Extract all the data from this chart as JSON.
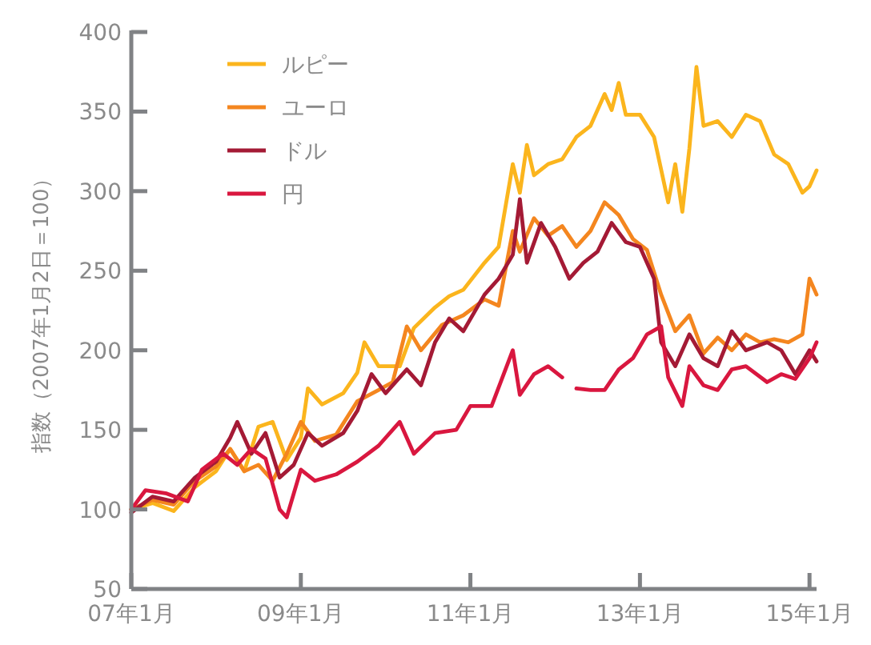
{
  "chart_data": {
    "type": "line",
    "ylabel": "指数（2007年1月2日＝100）",
    "xlim": [
      "2007-01",
      "2015-02"
    ],
    "ylim": [
      50,
      400
    ],
    "yticks": [
      50,
      100,
      150,
      200,
      250,
      300,
      350,
      400
    ],
    "xticks": [
      {
        "value": "2007-01",
        "label": "07年1月"
      },
      {
        "value": "2009-01",
        "label": "09年1月"
      },
      {
        "value": "2011-01",
        "label": "11年1月"
      },
      {
        "value": "2013-01",
        "label": "13年1月"
      },
      {
        "value": "2015-01",
        "label": "15年1月"
      }
    ],
    "grid": false,
    "legend": "top left",
    "marker": "none",
    "line_style": "solid",
    "series": [
      {
        "name": "ルピー",
        "color": "#fbb51d",
        "x": [
          "2007-01",
          "2007-04",
          "2007-07",
          "2007-10",
          "2008-01",
          "2008-03",
          "2008-05",
          "2008-07",
          "2008-09",
          "2008-11",
          "2009-01",
          "2009-02",
          "2009-04",
          "2009-07",
          "2009-09",
          "2009-10",
          "2009-12",
          "2010-03",
          "2010-05",
          "2010-08",
          "2010-10",
          "2010-12",
          "2011-03",
          "2011-05",
          "2011-07",
          "2011-08",
          "2011-09",
          "2011-10",
          "2011-12",
          "2012-02",
          "2012-04",
          "2012-06",
          "2012-08",
          "2012-09",
          "2012-10",
          "2012-11",
          "2013-01",
          "2013-03",
          "2013-05",
          "2013-06",
          "2013-07",
          "2013-08",
          "2013-09",
          "2013-10",
          "2013-12",
          "2014-02",
          "2014-04",
          "2014-06",
          "2014-08",
          "2014-10",
          "2014-12",
          "2015-01",
          "2015-02"
        ],
        "values": [
          100,
          104,
          99,
          114,
          124,
          138,
          124,
          152,
          155,
          131,
          145,
          176,
          166,
          173,
          186,
          205,
          190,
          190,
          214,
          227,
          234,
          238,
          255,
          265,
          317,
          299,
          329,
          310,
          317,
          320,
          334,
          341,
          361,
          351,
          368,
          348,
          348,
          334,
          293,
          317,
          287,
          327,
          378,
          341,
          344,
          334,
          348,
          344,
          323,
          317,
          299,
          303,
          313
        ]
      },
      {
        "name": "ユーロ",
        "color": "#f4861f",
        "x": [
          "2007-01",
          "2007-04",
          "2007-07",
          "2007-10",
          "2008-01",
          "2008-03",
          "2008-05",
          "2008-07",
          "2008-09",
          "2008-11",
          "2009-01",
          "2009-03",
          "2009-06",
          "2009-09",
          "2009-12",
          "2010-02",
          "2010-04",
          "2010-06",
          "2010-09",
          "2010-12",
          "2011-03",
          "2011-05",
          "2011-07",
          "2011-08",
          "2011-10",
          "2011-12",
          "2012-02",
          "2012-04",
          "2012-06",
          "2012-08",
          "2012-10",
          "2012-12",
          "2013-02",
          "2013-04",
          "2013-06",
          "2013-08",
          "2013-10",
          "2013-12",
          "2014-02",
          "2014-04",
          "2014-06",
          "2014-08",
          "2014-10",
          "2014-12",
          "2015-01",
          "2015-02"
        ],
        "values": [
          100,
          106,
          103,
          118,
          127,
          138,
          124,
          128,
          118,
          135,
          155,
          143,
          147,
          168,
          175,
          180,
          215,
          200,
          216,
          222,
          232,
          228,
          275,
          262,
          283,
          272,
          278,
          265,
          275,
          293,
          285,
          270,
          263,
          235,
          212,
          222,
          198,
          208,
          200,
          210,
          205,
          207,
          205,
          210,
          245,
          235
        ]
      },
      {
        "name": "ドル",
        "color": "#a41a35",
        "x": [
          "2007-01",
          "2007-04",
          "2007-07",
          "2007-10",
          "2008-01",
          "2008-03",
          "2008-04",
          "2008-06",
          "2008-08",
          "2008-10",
          "2008-12",
          "2009-02",
          "2009-04",
          "2009-07",
          "2009-09",
          "2009-11",
          "2010-01",
          "2010-04",
          "2010-06",
          "2010-08",
          "2010-10",
          "2010-12",
          "2011-03",
          "2011-05",
          "2011-07",
          "2011-08",
          "2011-09",
          "2011-11",
          "2012-01",
          "2012-03",
          "2012-05",
          "2012-07",
          "2012-09",
          "2012-11",
          "2013-01",
          "2013-03",
          "2013-04",
          "2013-06",
          "2013-08",
          "2013-10",
          "2013-12",
          "2014-02",
          "2014-04",
          "2014-07",
          "2014-09",
          "2014-11",
          "2015-01",
          "2015-02"
        ],
        "values": [
          98,
          108,
          105,
          120,
          130,
          145,
          155,
          135,
          148,
          120,
          128,
          148,
          140,
          148,
          162,
          185,
          173,
          188,
          178,
          205,
          220,
          212,
          235,
          245,
          260,
          295,
          255,
          280,
          265,
          245,
          255,
          262,
          280,
          268,
          265,
          245,
          205,
          190,
          210,
          195,
          190,
          212,
          200,
          205,
          200,
          185,
          200,
          193
        ]
      },
      {
        "name": "円",
        "color": "#d9173f",
        "x": [
          "2007-01",
          "2007-03",
          "2007-06",
          "2007-09",
          "2007-11",
          "2008-02",
          "2008-04",
          "2008-06",
          "2008-08",
          "2008-10",
          "2008-11",
          "2009-01",
          "2009-03",
          "2009-06",
          "2009-09",
          "2009-12",
          "2010-03",
          "2010-05",
          "2010-08",
          "2010-11",
          "2011-01",
          "2011-04",
          "2011-07",
          "2011-08",
          "2011-10",
          "2011-12",
          "2012-02",
          "2012-03",
          "2012-04",
          "2012-06",
          "2012-08",
          "2012-10",
          "2012-12",
          "2013-02",
          "2013-04",
          "2013-05",
          "2013-07",
          "2013-08",
          "2013-10",
          "2013-12",
          "2014-02",
          "2014-04",
          "2014-07",
          "2014-09",
          "2014-11",
          "2015-01",
          "2015-02"
        ],
        "values": [
          100,
          112,
          110,
          105,
          125,
          135,
          128,
          138,
          132,
          100,
          95,
          125,
          118,
          122,
          130,
          140,
          155,
          135,
          148,
          150,
          165,
          165,
          200,
          172,
          185,
          190,
          183,
          null,
          176,
          175,
          175,
          188,
          195,
          210,
          215,
          183,
          165,
          190,
          178,
          175,
          188,
          190,
          180,
          185,
          182,
          195,
          205
        ]
      }
    ]
  }
}
